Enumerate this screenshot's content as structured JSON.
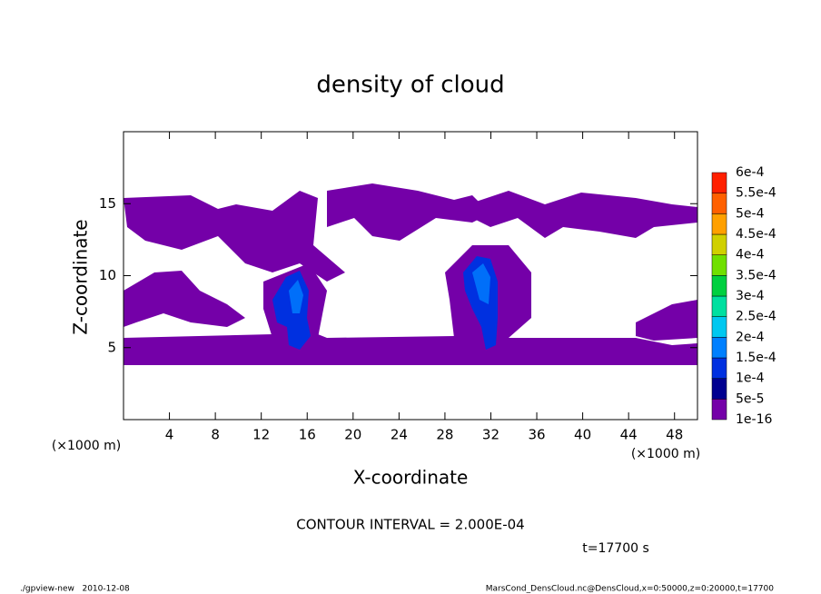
{
  "chart_data": {
    "type": "contour",
    "title": "density of cloud",
    "x_label": "X-coordinate",
    "y_label": "Z-coordinate",
    "x_unit": "(×1000 m)",
    "y_unit": "(×1000 m)",
    "xlim": [
      0,
      50
    ],
    "ylim": [
      0,
      20
    ],
    "xticks": [
      4,
      8,
      12,
      16,
      20,
      24,
      28,
      32,
      36,
      40,
      44,
      48
    ],
    "yticks": [
      5,
      10,
      15
    ],
    "colorbar": {
      "levels": [
        {
          "value": 1e-16,
          "label": "1e-16"
        },
        {
          "value": 5e-05,
          "label": "5e-5"
        },
        {
          "value": 0.0001,
          "label": "1e-4"
        },
        {
          "value": 0.00015,
          "label": "1.5e-4"
        },
        {
          "value": 0.0002,
          "label": "2e-4"
        },
        {
          "value": 0.00025,
          "label": "2.5e-4"
        },
        {
          "value": 0.0003,
          "label": "3e-4"
        },
        {
          "value": 0.00035,
          "label": "3.5e-4"
        },
        {
          "value": 0.0004,
          "label": "4e-4"
        },
        {
          "value": 0.00045,
          "label": "4.5e-4"
        },
        {
          "value": 0.0005,
          "label": "5e-4"
        },
        {
          "value": 0.00055,
          "label": "5.5e-4"
        },
        {
          "value": 0.0006,
          "label": "6e-4"
        }
      ],
      "colors": [
        "#7400a8",
        "#000090",
        "#0030e0",
        "#0080ff",
        "#00c8f0",
        "#00e0a0",
        "#00d040",
        "#70e000",
        "#d0d000",
        "#ffa000",
        "#ff6000",
        "#ff2000",
        "#ff9090"
      ]
    },
    "contour_interval": "CONTOUR INTERVAL = 2.000E-04",
    "time_label": "t=17700 s",
    "footer_left": "./gpview-new   2010-12-08",
    "footer_right": "MarsCond_DensCloud.nc@DensCloud,x=0:50000,z=0:20000,t=17700"
  }
}
